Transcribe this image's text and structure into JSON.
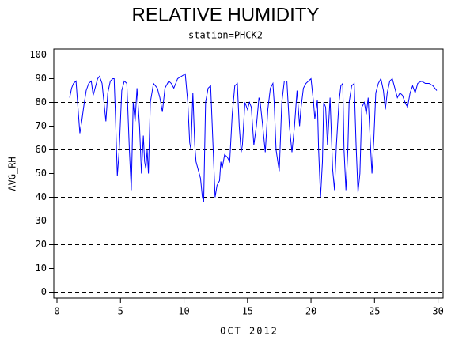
{
  "chart_data": {
    "type": "line",
    "title": "RELATIVE HUMIDITY",
    "subtitle": "station=PHCK2",
    "x_label": "OCT 2012",
    "y_label": "AVG_RH",
    "xlim": [
      -0.25,
      30.4
    ],
    "ylim": [
      -2.5,
      102.5
    ],
    "xticks": [
      0,
      5,
      10,
      15,
      20,
      25,
      30
    ],
    "yticks": [
      0,
      10,
      20,
      30,
      40,
      50,
      60,
      70,
      80,
      90,
      100
    ],
    "ygrid": [
      0,
      20,
      40,
      60,
      80,
      100
    ],
    "series": [
      {
        "color": "#0000ff",
        "x": [
          1.0,
          1.15,
          1.3,
          1.5,
          1.65,
          1.8,
          1.95,
          2.1,
          2.3,
          2.5,
          2.7,
          2.85,
          3.0,
          3.2,
          3.35,
          3.55,
          3.7,
          3.85,
          4.0,
          4.2,
          4.4,
          4.5,
          4.6,
          4.75,
          4.9,
          5.1,
          5.3,
          5.5,
          5.7,
          5.85,
          6.0,
          6.15,
          6.3,
          6.5,
          6.65,
          6.8,
          6.9,
          7.0,
          7.1,
          7.2,
          7.35,
          7.6,
          7.9,
          8.1,
          8.3,
          8.5,
          8.8,
          9.0,
          9.2,
          9.5,
          9.8,
          10.1,
          10.3,
          10.45,
          10.55,
          10.7,
          10.85,
          10.95,
          11.1,
          11.3,
          11.45,
          11.55,
          11.7,
          11.9,
          12.1,
          12.3,
          12.45,
          12.6,
          12.8,
          12.9,
          13.0,
          13.2,
          13.4,
          13.6,
          13.8,
          14.0,
          14.2,
          14.35,
          14.5,
          14.6,
          14.8,
          15.0,
          15.15,
          15.3,
          15.5,
          15.7,
          15.9,
          16.0,
          16.2,
          16.4,
          16.6,
          16.8,
          17.0,
          17.1,
          17.25,
          17.5,
          17.7,
          17.9,
          18.1,
          18.3,
          18.5,
          18.7,
          18.9,
          19.1,
          19.2,
          19.4,
          19.6,
          19.8,
          20.0,
          20.2,
          20.3,
          20.5,
          20.6,
          20.75,
          20.9,
          21.0,
          21.15,
          21.3,
          21.5,
          21.7,
          21.85,
          22.0,
          22.2,
          22.35,
          22.5,
          22.6,
          22.75,
          22.9,
          23.0,
          23.2,
          23.4,
          23.55,
          23.7,
          23.85,
          24.0,
          24.2,
          24.35,
          24.5,
          24.7,
          24.8,
          24.95,
          25.1,
          25.3,
          25.5,
          25.7,
          25.85,
          26.0,
          26.2,
          26.4,
          26.6,
          26.8,
          27.0,
          27.2,
          27.4,
          27.6,
          27.8,
          28.0,
          28.2,
          28.4,
          28.7,
          29.0,
          29.3,
          29.6,
          29.9
        ],
        "values": [
          82,
          86,
          88,
          89,
          78,
          67,
          72,
          78,
          85,
          88,
          89,
          83,
          86,
          90,
          91,
          88,
          80,
          72,
          84,
          89,
          90,
          90,
          75,
          49,
          60,
          85,
          89,
          88,
          60,
          43,
          80,
          72,
          86,
          70,
          50,
          66,
          55,
          52,
          60,
          50,
          80,
          88,
          86,
          82,
          76,
          86,
          89,
          88,
          86,
          90,
          91,
          92,
          80,
          63,
          60,
          84,
          62,
          55,
          52,
          48,
          40,
          38,
          80,
          86,
          87,
          60,
          40,
          45,
          47,
          55,
          52,
          58,
          57,
          55,
          75,
          87,
          88,
          70,
          59,
          62,
          80,
          77,
          80,
          78,
          62,
          70,
          82,
          80,
          70,
          59,
          77,
          86,
          88,
          80,
          60,
          51,
          80,
          89,
          89,
          70,
          59,
          70,
          85,
          70,
          77,
          86,
          88,
          89,
          90,
          80,
          73,
          81,
          60,
          40,
          55,
          80,
          78,
          62,
          82,
          52,
          43,
          62,
          80,
          87,
          88,
          60,
          43,
          60,
          80,
          87,
          88,
          62,
          42,
          50,
          78,
          80,
          75,
          82,
          60,
          50,
          65,
          84,
          88,
          90,
          85,
          77,
          84,
          89,
          90,
          86,
          82,
          84,
          83,
          80,
          78,
          84,
          87,
          84,
          88,
          89,
          88,
          88,
          87,
          85
        ]
      }
    ]
  }
}
